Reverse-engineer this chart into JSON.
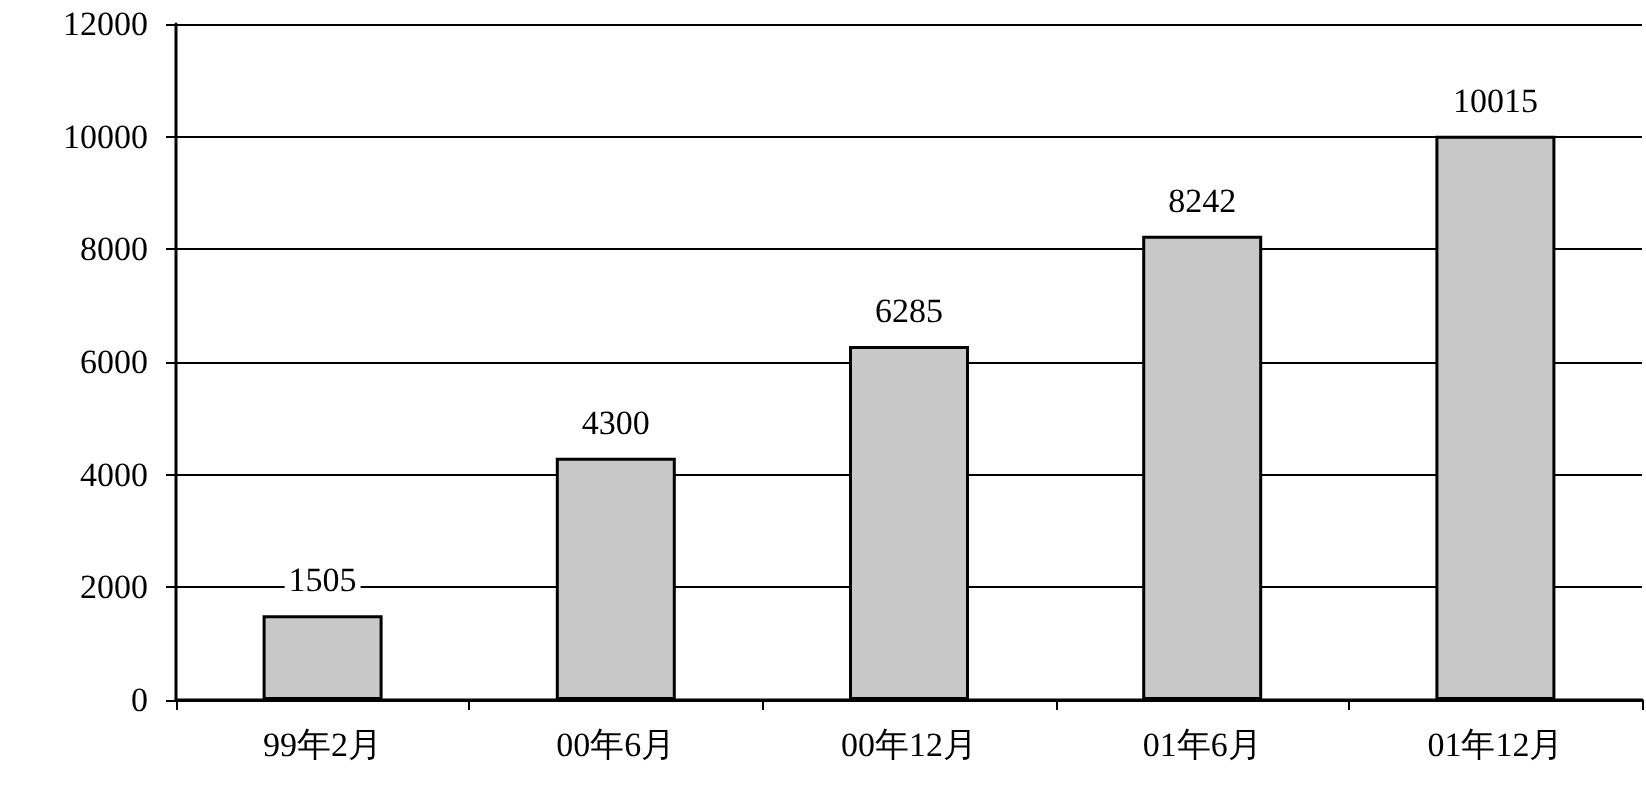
{
  "chart_data": {
    "type": "bar",
    "categories": [
      "99年2月",
      "00年6月",
      "00年12月",
      "01年6月",
      "01年12月"
    ],
    "values": [
      1505,
      4300,
      6285,
      8242,
      10015
    ],
    "color": "#c8c8c8",
    "ylim": [
      0,
      12000
    ],
    "yticks": [
      0,
      2000,
      4000,
      6000,
      8000,
      10000,
      12000
    ],
    "grid": "y",
    "data_labels": true
  }
}
